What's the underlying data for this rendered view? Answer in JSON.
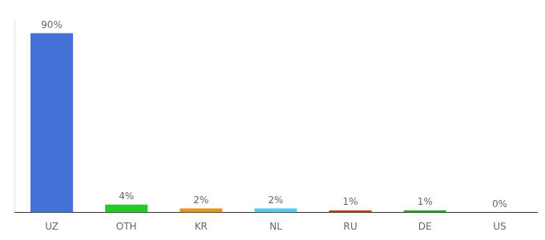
{
  "chart_data": {
    "type": "bar",
    "categories": [
      "UZ",
      "OTH",
      "KR",
      "NL",
      "RU",
      "DE",
      "US"
    ],
    "values": [
      90,
      4,
      2,
      2,
      1,
      1,
      0
    ],
    "value_labels": [
      "90%",
      "4%",
      "2%",
      "2%",
      "1%",
      "1%",
      "0%"
    ],
    "colors": [
      "#4472d6",
      "#22cc22",
      "#e8961a",
      "#55ccee",
      "#bb4411",
      "#22aa22",
      "#ffffff"
    ],
    "ylim": [
      0,
      97
    ],
    "tick_labels": "x",
    "data_labels": true,
    "grid": false
  }
}
